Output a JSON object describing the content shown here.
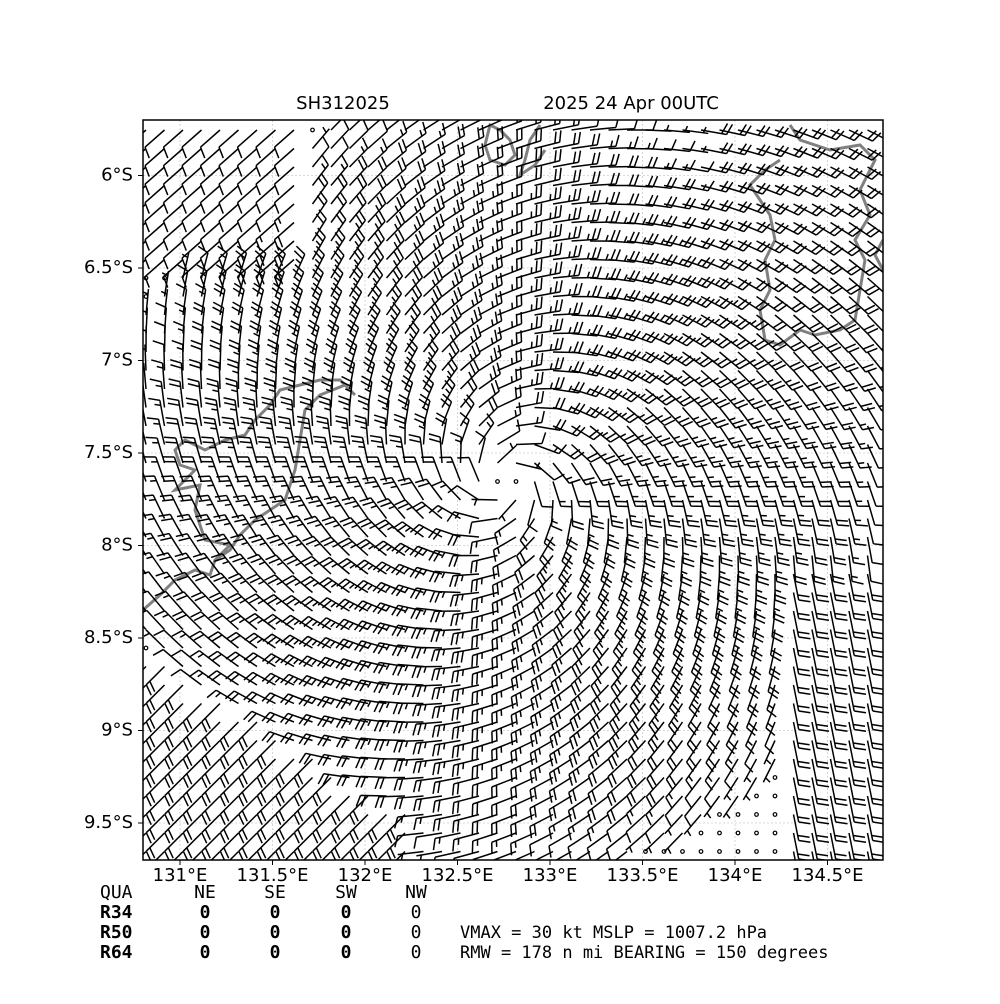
{
  "chart_data": {
    "type": "wind-barb-map",
    "title_left": "SH312025",
    "title_right": "2025 24 Apr 00UTC",
    "xlim": [
      130.8,
      134.8
    ],
    "ylim": [
      -9.7,
      -5.7
    ],
    "xticks": [
      {
        "value": 131,
        "label": "131°E"
      },
      {
        "value": 131.5,
        "label": "131.5°E"
      },
      {
        "value": 132,
        "label": "132°E"
      },
      {
        "value": 132.5,
        "label": "132.5°E"
      },
      {
        "value": 133,
        "label": "133°E"
      },
      {
        "value": 133.5,
        "label": "133.5°E"
      },
      {
        "value": 134,
        "label": "134°E"
      },
      {
        "value": 134.5,
        "label": "134.5°E"
      }
    ],
    "yticks": [
      {
        "value": -6,
        "label": "6°S"
      },
      {
        "value": -6.5,
        "label": "6.5°S"
      },
      {
        "value": -7,
        "label": "7°S"
      },
      {
        "value": -7.5,
        "label": "7.5°S"
      },
      {
        "value": -8,
        "label": "8°S"
      },
      {
        "value": -8.5,
        "label": "8.5°S"
      },
      {
        "value": -9,
        "label": "9°S"
      },
      {
        "value": -9.5,
        "label": "9.5°S"
      }
    ],
    "grid": true,
    "table": {
      "header": [
        "QUA",
        "NE",
        "SE",
        "SW",
        "NW"
      ],
      "rows": [
        [
          "R34",
          0,
          0,
          0,
          0
        ],
        [
          "R50",
          0,
          0,
          0,
          0
        ],
        [
          "R64",
          0,
          0,
          0,
          0
        ]
      ]
    },
    "info": [
      "VMAX =  30 kt MSLP = 1007.2 hPa",
      "RMW = 178 n mi BEARING = 150 degrees"
    ]
  }
}
